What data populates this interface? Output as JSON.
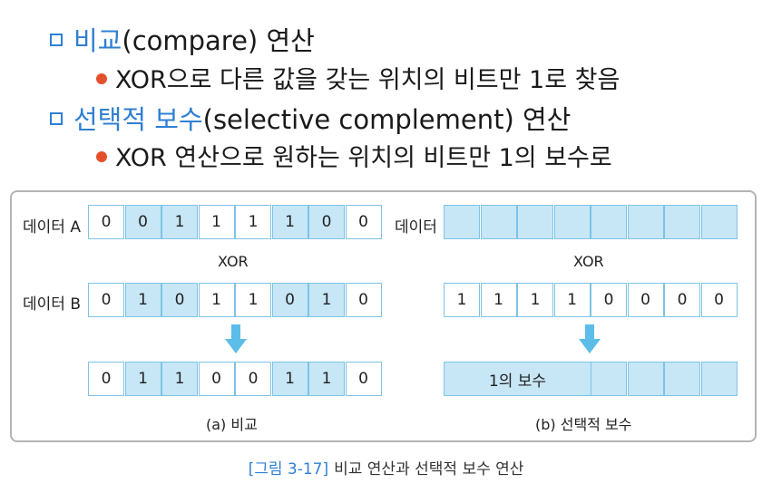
{
  "bullets": [
    {
      "highlight": "비교",
      "rest": "(compare) 연산"
    },
    {
      "text": "XOR으로 다른 값을 갖는 위치의 비트만 1로 찾음"
    },
    {
      "highlight": "선택적 보수",
      "rest": "(selective complement) 연산"
    },
    {
      "text": "XOR 연산으로 원하는 위치의 비트만 1의 보수로"
    }
  ],
  "figure": {
    "left": {
      "row_a_label": "데이터 A",
      "row_a": [
        "0",
        "0",
        "1",
        "1",
        "1",
        "1",
        "0",
        "0"
      ],
      "row_a_highlight": [
        false,
        true,
        true,
        false,
        false,
        true,
        true,
        false
      ],
      "op": "XOR",
      "row_b_label": "데이터 B",
      "row_b": [
        "0",
        "1",
        "0",
        "1",
        "1",
        "0",
        "1",
        "0"
      ],
      "row_b_highlight": [
        false,
        true,
        true,
        false,
        false,
        true,
        true,
        false
      ],
      "result": [
        "0",
        "1",
        "1",
        "0",
        "0",
        "1",
        "1",
        "0"
      ],
      "result_highlight": [
        false,
        true,
        true,
        false,
        false,
        true,
        true,
        false
      ],
      "caption": "(a) 비교"
    },
    "right": {
      "row_a_label": "데이터",
      "op": "XOR",
      "mask": [
        "1",
        "1",
        "1",
        "1",
        "0",
        "0",
        "0",
        "0"
      ],
      "result_label": "1의 보수",
      "caption": "(b) 선택적 보수"
    }
  },
  "caption": {
    "number": "[그림 3-17]",
    "text": "비교 연산과 선택적 보수 연산"
  },
  "colors": {
    "accent": "#2f7fd3",
    "bullet_dot": "#e4502b",
    "cell_fill": "#c7e6f6",
    "cell_border": "#7ec3e6",
    "arrow": "#5bbde8"
  }
}
